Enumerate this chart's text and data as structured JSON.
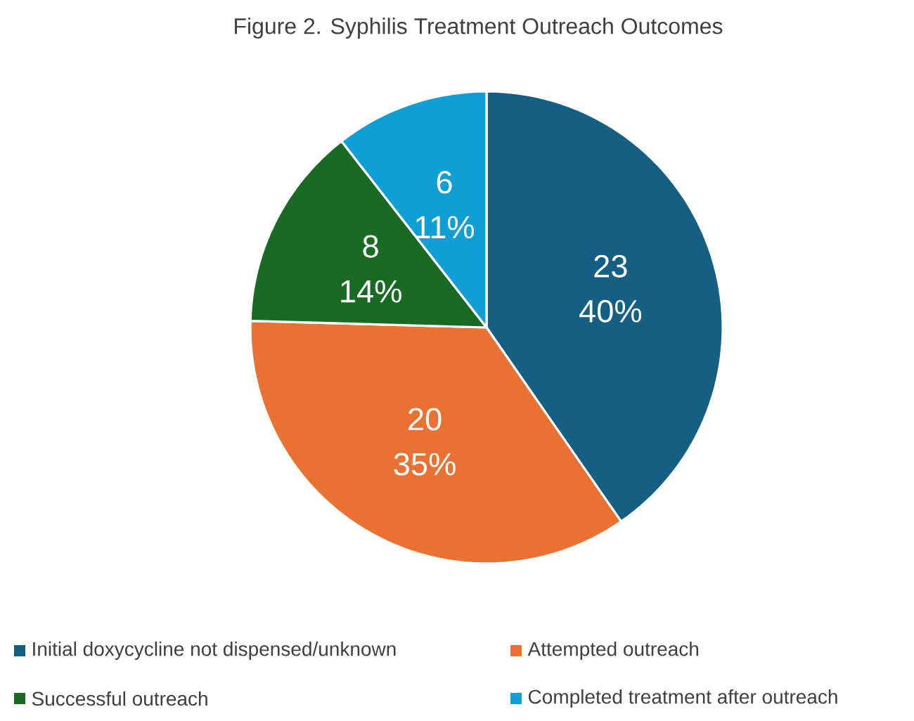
{
  "chart_data": {
    "type": "pie",
    "title": "Figure 2.  Syphilis Treatment Outreach Outcomes",
    "categories": [
      "Initial doxycycline not dispensed/unknown",
      "Attempted outreach",
      "Successful outreach",
      "Completed treatment after outreach"
    ],
    "values": [
      23,
      20,
      8,
      6
    ],
    "value_labels": [
      "23 40%",
      "20 35%",
      "8 14%",
      "6 11%"
    ],
    "colors": [
      "#156082",
      "#e97132",
      "#196b24",
      "#0f9ed5"
    ],
    "legend": "bottom"
  }
}
